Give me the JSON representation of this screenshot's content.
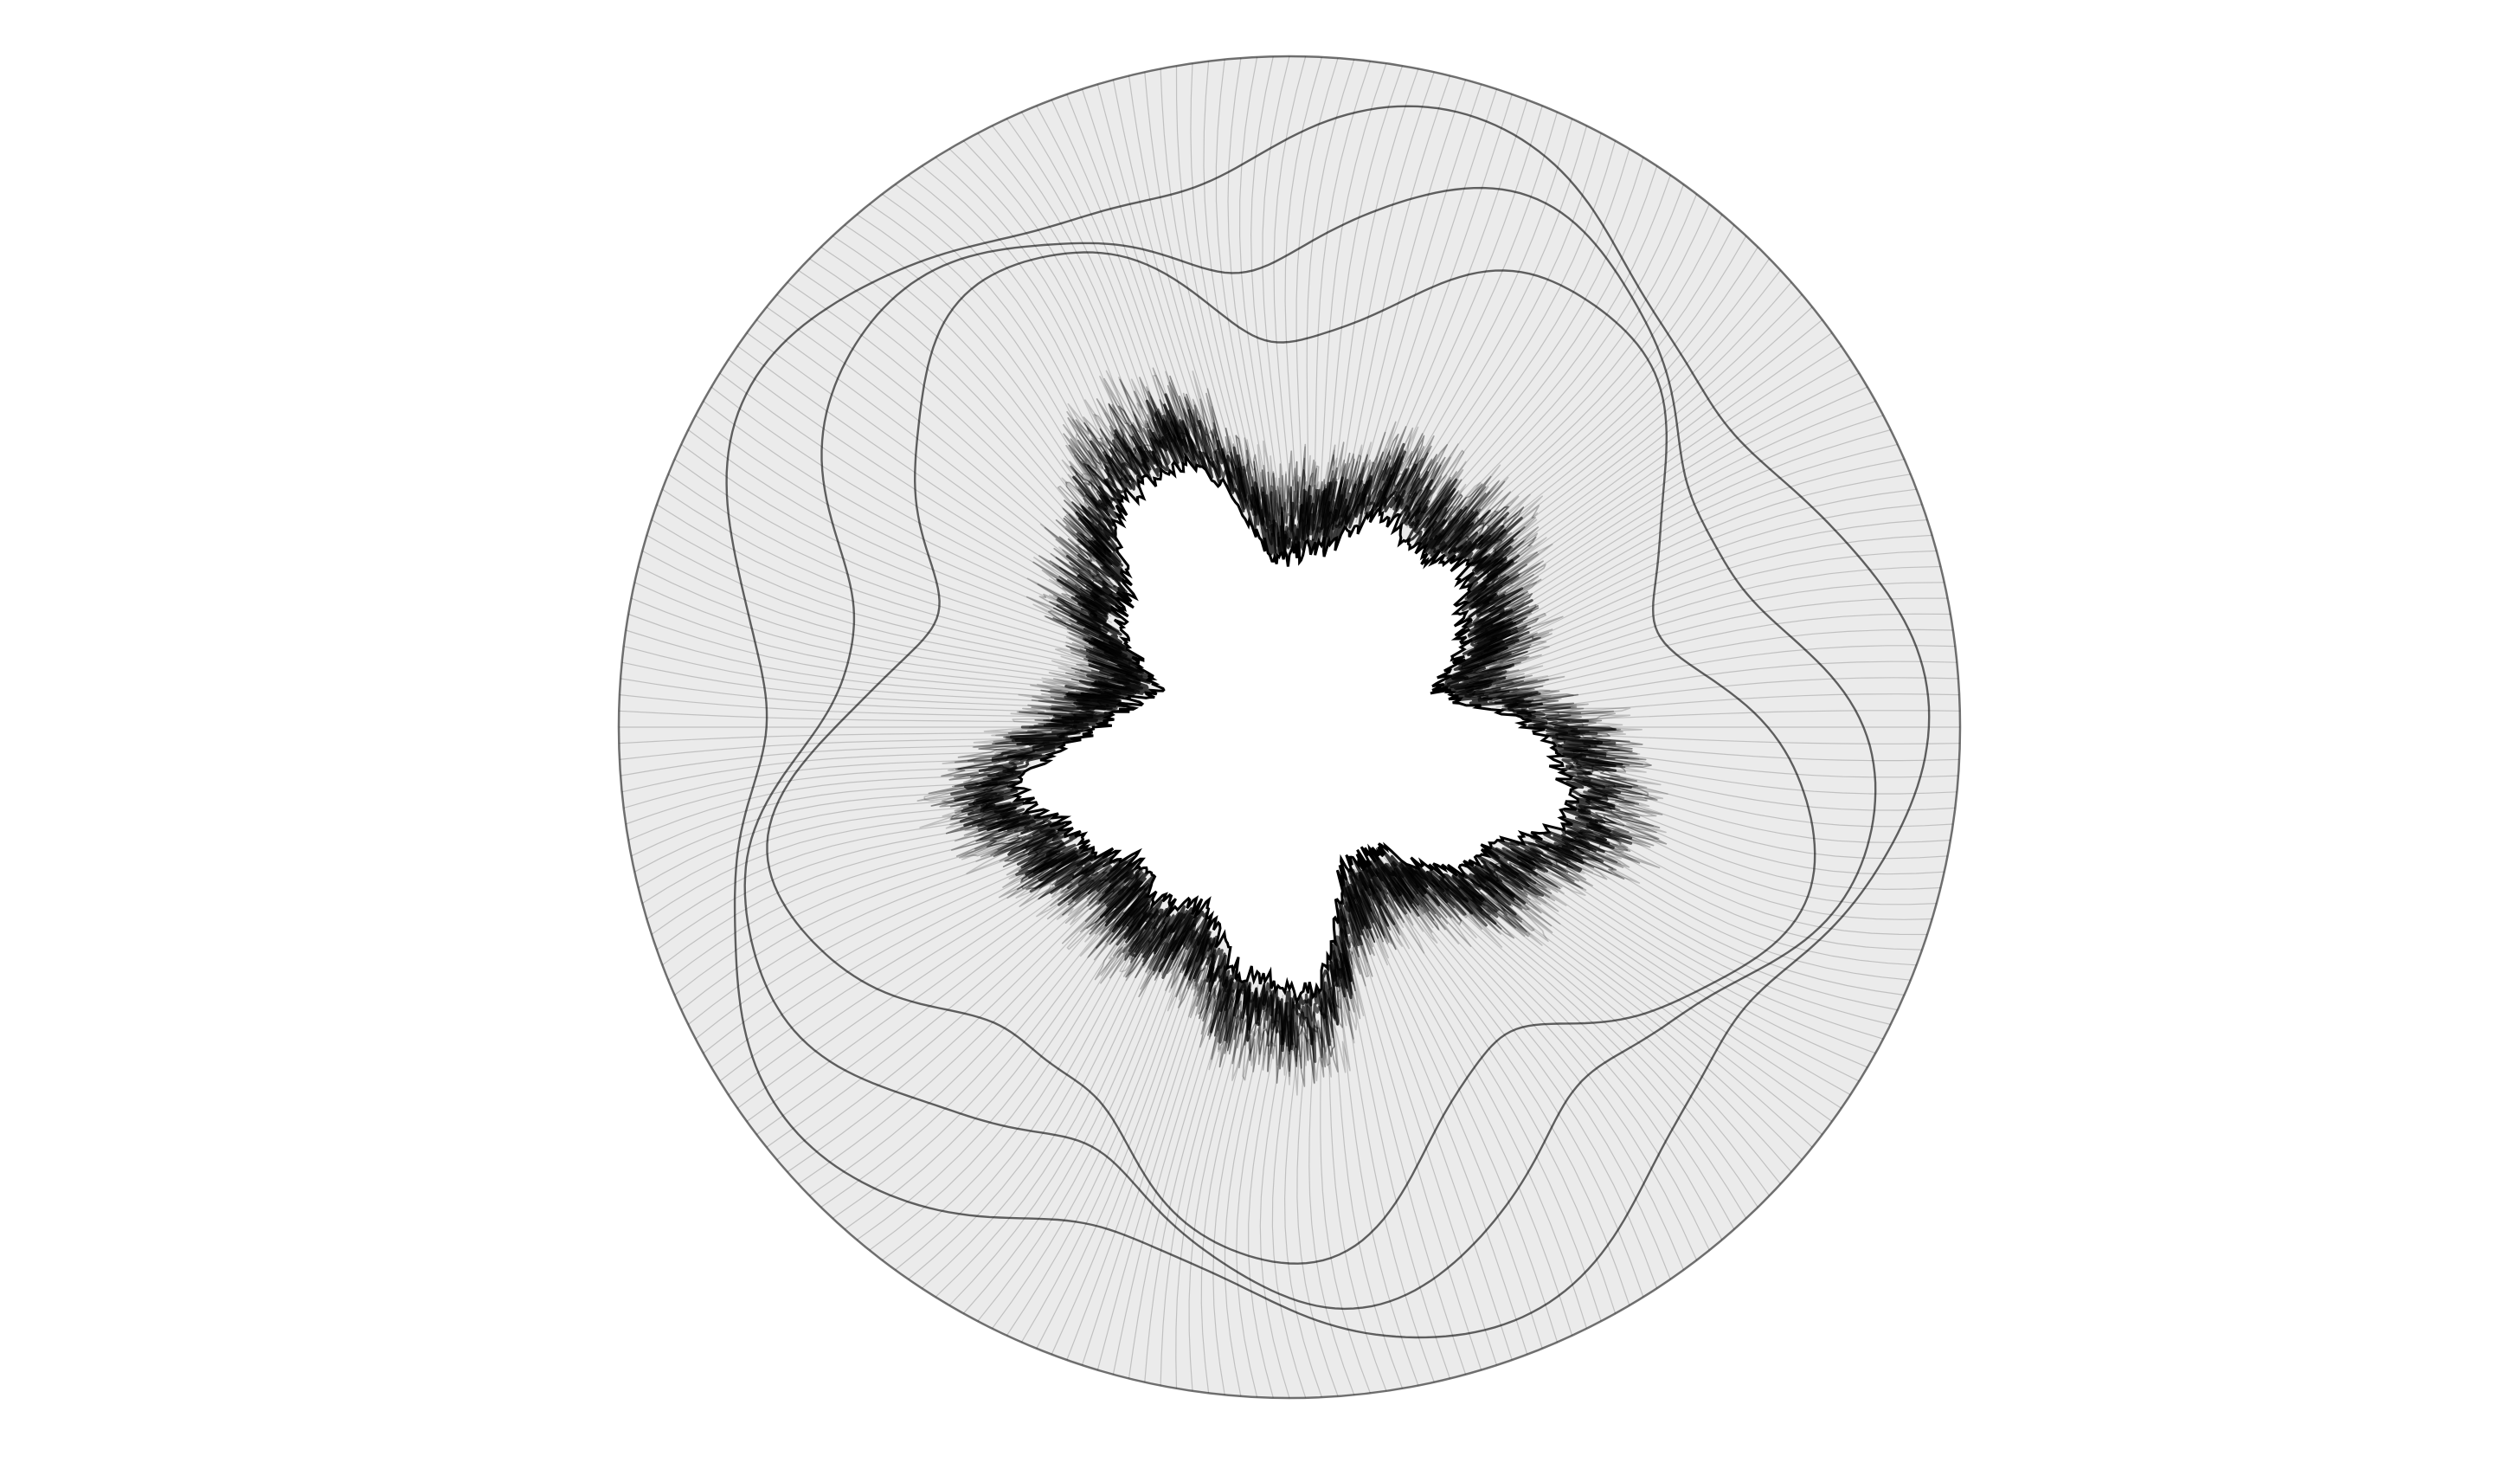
{
  "artwork": {
    "subject": "fractal-ring",
    "background_color": "#ffffff",
    "fill_color": "#ebebeb",
    "line_color": "#000000",
    "lobe_count": 5,
    "layer_count": 3
  }
}
